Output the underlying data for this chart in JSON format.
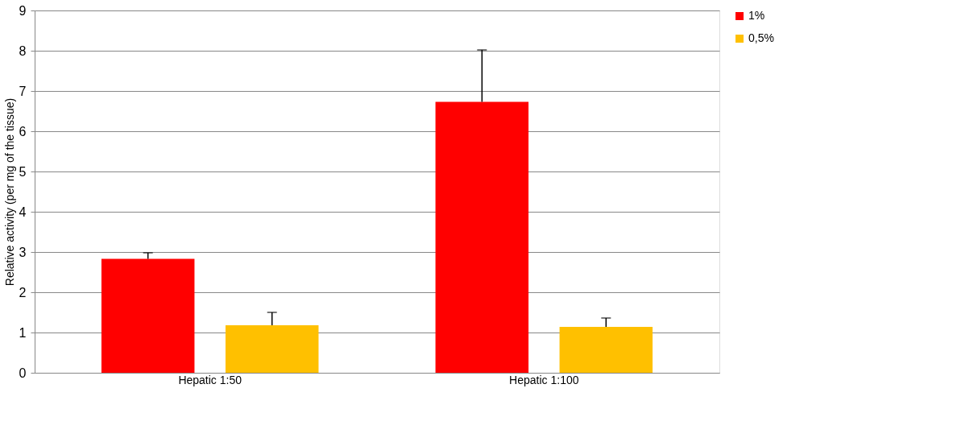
{
  "chart_data": {
    "type": "bar",
    "ylabel": "Relative activity (per mg of the tissue)",
    "categories": [
      "Hepatic 1:50",
      "Hepatic 1:100"
    ],
    "series": [
      {
        "name": "1%",
        "color": "#ff0000",
        "values": [
          2.83,
          6.73
        ],
        "errors": [
          [
            2.83,
            2.98
          ],
          [
            6.73,
            8.02
          ]
        ]
      },
      {
        "name": "0,5%",
        "color": "#ffc000",
        "values": [
          1.18,
          1.14
        ],
        "errors": [
          [
            1.18,
            1.5
          ],
          [
            1.14,
            1.36
          ]
        ]
      }
    ],
    "ylim": [
      0,
      9
    ],
    "yticks": [
      0,
      1,
      2,
      3,
      4,
      5,
      6,
      7,
      8,
      9
    ],
    "grid": "y",
    "legend": "right"
  }
}
